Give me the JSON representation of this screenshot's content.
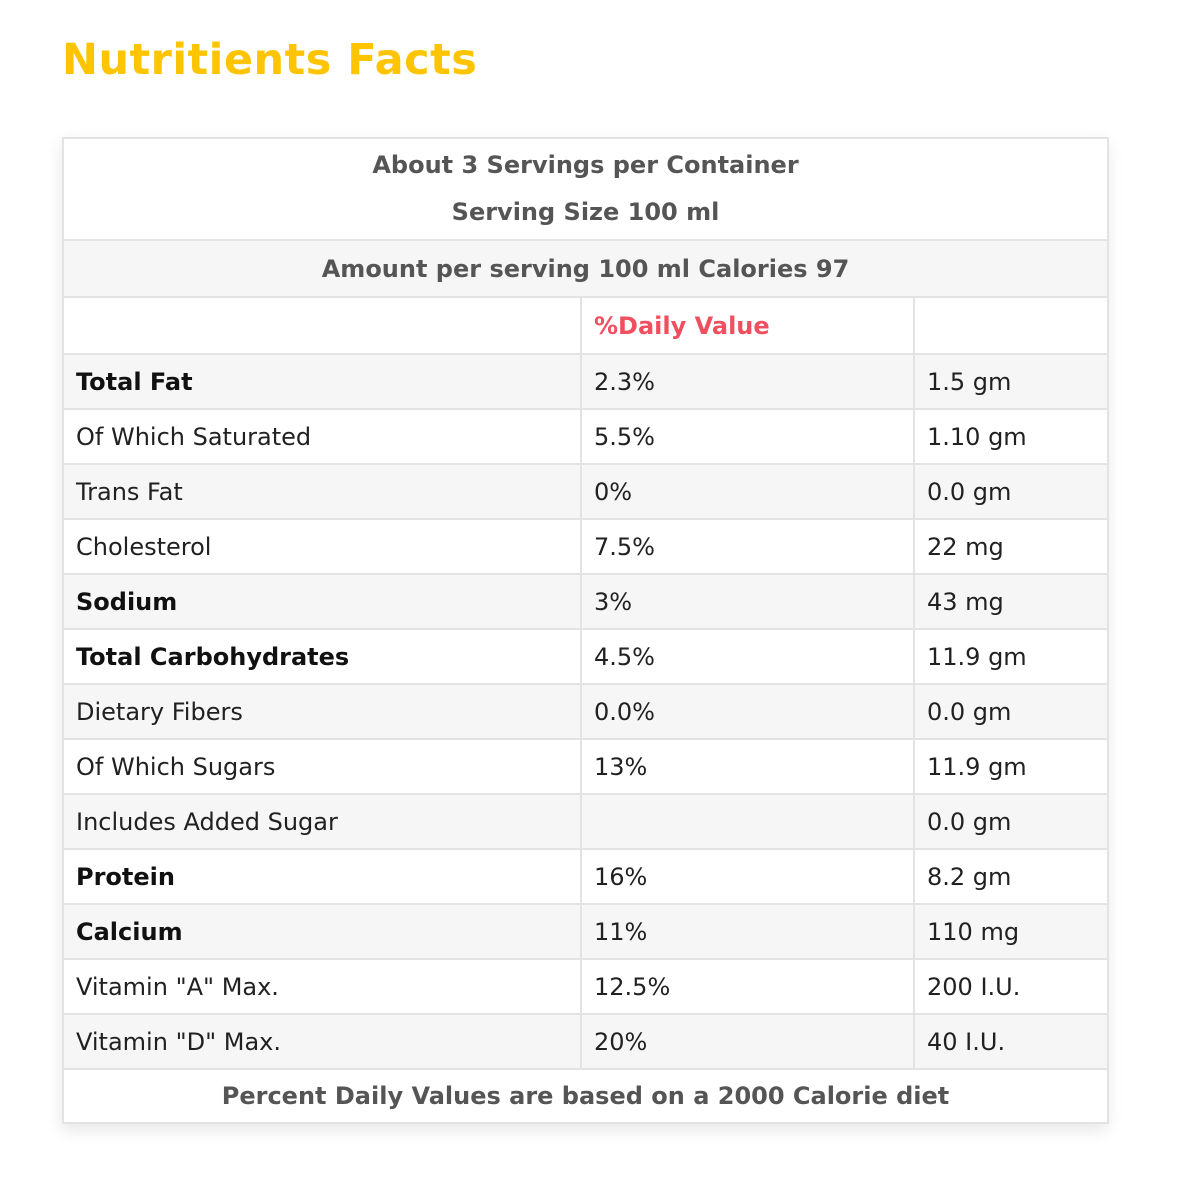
{
  "title": "Nutritients Facts",
  "colors": {
    "title": "#ffc400",
    "daily_value_header": "#ef4f5f",
    "header_text": "#555555",
    "border": "#e3e3e3",
    "stripe": "#f6f6f6"
  },
  "header": {
    "servings": "About 3 Servings per Container",
    "serving_size": "Serving Size 100 ml",
    "calories": "Amount per serving 100 ml Calories 97",
    "daily_value_label": "%Daily Value"
  },
  "rows": [
    {
      "name": "Total Fat",
      "dv": "2.3%",
      "amount": "1.5 gm",
      "bold": true
    },
    {
      "name": "Of Which Saturated",
      "dv": "5.5%",
      "amount": "1.10 gm",
      "bold": false
    },
    {
      "name": "Trans Fat",
      "dv": "0%",
      "amount": "0.0 gm",
      "bold": false
    },
    {
      "name": "Cholesterol",
      "dv": "7.5%",
      "amount": "22 mg",
      "bold": false
    },
    {
      "name": "Sodium",
      "dv": "3%",
      "amount": "43 mg",
      "bold": true
    },
    {
      "name": "Total Carbohydrates",
      "dv": "4.5%",
      "amount": "11.9 gm",
      "bold": true
    },
    {
      "name": "Dietary Fibers",
      "dv": "0.0%",
      "amount": "0.0 gm",
      "bold": false
    },
    {
      "name": "Of Which Sugars",
      "dv": "13%",
      "amount": "11.9 gm",
      "bold": false
    },
    {
      "name": "Includes Added Sugar",
      "dv": "",
      "amount": "0.0 gm",
      "bold": false
    },
    {
      "name": "Protein",
      "dv": "16%",
      "amount": "8.2 gm",
      "bold": true
    },
    {
      "name": "Calcium",
      "dv": "11%",
      "amount": "110 mg",
      "bold": true
    },
    {
      "name": "Vitamin \"A\" Max.",
      "dv": "12.5%",
      "amount": "200 I.U.",
      "bold": false
    },
    {
      "name": "Vitamin \"D\" Max.",
      "dv": "20%",
      "amount": "40 I.U.",
      "bold": false
    }
  ],
  "footer": "Percent Daily Values are based on a 2000 Calorie diet"
}
